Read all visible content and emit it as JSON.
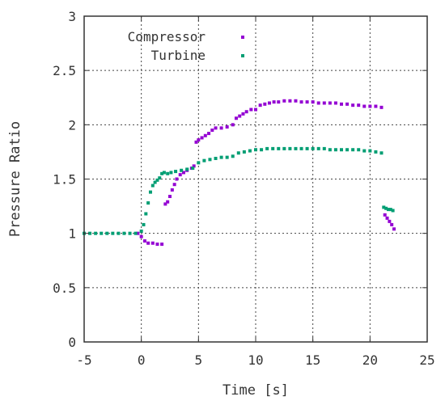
{
  "chart_data": {
    "type": "scatter",
    "title": "",
    "xlabel": "Time [s]",
    "ylabel": "Pressure Ratio",
    "xlim": [
      -5,
      25
    ],
    "ylim": [
      0,
      3
    ],
    "xticks": [
      "-5",
      "0",
      "5",
      "10",
      "15",
      "20",
      "25"
    ],
    "yticks": [
      "0",
      "0.5",
      "1",
      "1.5",
      "2",
      "2.5",
      "3"
    ],
    "grid": true,
    "legend_position": "top-left",
    "series": [
      {
        "name": "Compressor",
        "color": "#9400d3",
        "points": [
          [
            -0.3,
            1.0
          ],
          [
            0.0,
            0.97
          ],
          [
            0.3,
            0.93
          ],
          [
            0.6,
            0.91
          ],
          [
            1.0,
            0.91
          ],
          [
            1.4,
            0.9
          ],
          [
            1.8,
            0.9
          ],
          [
            2.1,
            1.27
          ],
          [
            2.3,
            1.29
          ],
          [
            2.5,
            1.34
          ],
          [
            2.7,
            1.4
          ],
          [
            2.9,
            1.45
          ],
          [
            3.1,
            1.5
          ],
          [
            3.4,
            1.54
          ],
          [
            3.7,
            1.56
          ],
          [
            4.0,
            1.58
          ],
          [
            4.4,
            1.6
          ],
          [
            4.6,
            1.62
          ],
          [
            4.8,
            1.84
          ],
          [
            5.0,
            1.86
          ],
          [
            5.3,
            1.88
          ],
          [
            5.6,
            1.9
          ],
          [
            5.9,
            1.92
          ],
          [
            6.2,
            1.95
          ],
          [
            6.5,
            1.97
          ],
          [
            7.0,
            1.97
          ],
          [
            7.5,
            1.98
          ],
          [
            8.0,
            2.0
          ],
          [
            8.3,
            2.06
          ],
          [
            8.6,
            2.08
          ],
          [
            8.9,
            2.1
          ],
          [
            9.2,
            2.12
          ],
          [
            9.6,
            2.14
          ],
          [
            10.0,
            2.14
          ],
          [
            10.4,
            2.18
          ],
          [
            10.8,
            2.19
          ],
          [
            11.2,
            2.2
          ],
          [
            11.6,
            2.21
          ],
          [
            12.0,
            2.21
          ],
          [
            12.5,
            2.22
          ],
          [
            13.0,
            2.22
          ],
          [
            13.5,
            2.22
          ],
          [
            14.0,
            2.21
          ],
          [
            14.5,
            2.21
          ],
          [
            15.0,
            2.21
          ],
          [
            15.5,
            2.2
          ],
          [
            16.0,
            2.2
          ],
          [
            16.5,
            2.2
          ],
          [
            17.0,
            2.2
          ],
          [
            17.5,
            2.19
          ],
          [
            18.0,
            2.19
          ],
          [
            18.5,
            2.18
          ],
          [
            19.0,
            2.18
          ],
          [
            19.5,
            2.17
          ],
          [
            20.0,
            2.17
          ],
          [
            20.5,
            2.17
          ],
          [
            21.0,
            2.16
          ],
          [
            21.3,
            1.17
          ],
          [
            21.5,
            1.14
          ],
          [
            21.7,
            1.11
          ],
          [
            21.9,
            1.08
          ],
          [
            22.1,
            1.04
          ]
        ]
      },
      {
        "name": "Turbine",
        "color": "#009e73",
        "points": [
          [
            -5.0,
            1.0
          ],
          [
            -4.5,
            1.0
          ],
          [
            -4.0,
            1.0
          ],
          [
            -3.5,
            1.0
          ],
          [
            -3.0,
            1.0
          ],
          [
            -2.5,
            1.0
          ],
          [
            -2.0,
            1.0
          ],
          [
            -1.5,
            1.0
          ],
          [
            -1.0,
            1.0
          ],
          [
            -0.5,
            1.0
          ],
          [
            0.0,
            1.02
          ],
          [
            0.2,
            1.08
          ],
          [
            0.4,
            1.18
          ],
          [
            0.6,
            1.28
          ],
          [
            0.8,
            1.38
          ],
          [
            1.0,
            1.44
          ],
          [
            1.2,
            1.47
          ],
          [
            1.4,
            1.49
          ],
          [
            1.6,
            1.51
          ],
          [
            1.8,
            1.55
          ],
          [
            2.0,
            1.56
          ],
          [
            2.3,
            1.55
          ],
          [
            2.6,
            1.56
          ],
          [
            3.0,
            1.57
          ],
          [
            3.5,
            1.58
          ],
          [
            4.0,
            1.59
          ],
          [
            4.5,
            1.6
          ],
          [
            5.0,
            1.65
          ],
          [
            5.5,
            1.67
          ],
          [
            6.0,
            1.68
          ],
          [
            6.5,
            1.69
          ],
          [
            7.0,
            1.7
          ],
          [
            7.5,
            1.7
          ],
          [
            8.0,
            1.71
          ],
          [
            8.5,
            1.74
          ],
          [
            9.0,
            1.75
          ],
          [
            9.5,
            1.76
          ],
          [
            10.0,
            1.77
          ],
          [
            10.5,
            1.77
          ],
          [
            11.0,
            1.78
          ],
          [
            11.5,
            1.78
          ],
          [
            12.0,
            1.78
          ],
          [
            12.5,
            1.78
          ],
          [
            13.0,
            1.78
          ],
          [
            13.5,
            1.78
          ],
          [
            14.0,
            1.78
          ],
          [
            14.5,
            1.78
          ],
          [
            15.0,
            1.78
          ],
          [
            15.5,
            1.78
          ],
          [
            16.0,
            1.78
          ],
          [
            16.5,
            1.77
          ],
          [
            17.0,
            1.77
          ],
          [
            17.5,
            1.77
          ],
          [
            18.0,
            1.77
          ],
          [
            18.5,
            1.77
          ],
          [
            19.0,
            1.77
          ],
          [
            19.5,
            1.76
          ],
          [
            20.0,
            1.76
          ],
          [
            20.5,
            1.75
          ],
          [
            21.0,
            1.74
          ],
          [
            21.2,
            1.24
          ],
          [
            21.4,
            1.23
          ],
          [
            21.6,
            1.22
          ],
          [
            21.8,
            1.22
          ],
          [
            22.0,
            1.21
          ]
        ]
      }
    ]
  }
}
